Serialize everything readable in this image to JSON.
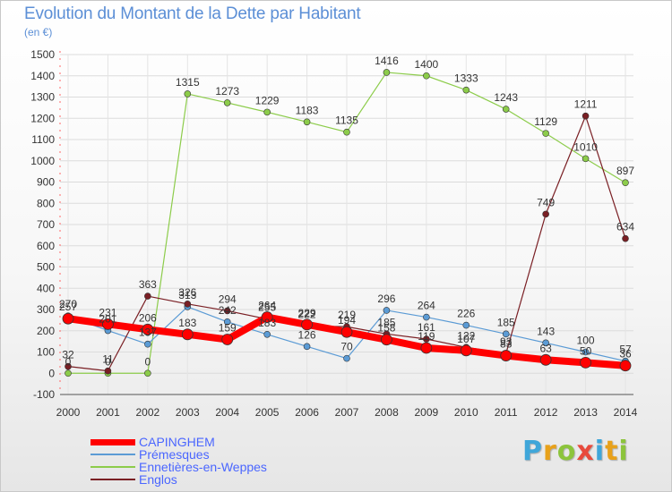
{
  "header": {
    "title": "Evolution du Montant de la Dette par Habitant",
    "subtitle": "(en €)"
  },
  "brand": {
    "text": "Proxiti",
    "colors": [
      "#3fa6d9",
      "#e8a11a",
      "#8cc43c",
      "#e84a3c",
      "#3fa6d9",
      "#e8a11a",
      "#8cc43c"
    ]
  },
  "chart_data": {
    "type": "line",
    "title": "Evolution du Montant de la Dette par Habitant",
    "subtitle": "(en €)",
    "xlabel": "",
    "ylabel": "",
    "x": [
      "2000",
      "2001",
      "2002",
      "2003",
      "2004",
      "2005",
      "2006",
      "2007",
      "2008",
      "2009",
      "2010",
      "2011",
      "2012",
      "2013",
      "2014"
    ],
    "ylim": [
      -100,
      1500
    ],
    "yticks": [
      -100,
      0,
      100,
      200,
      300,
      400,
      500,
      600,
      700,
      800,
      900,
      1000,
      1100,
      1200,
      1300,
      1400,
      1500
    ],
    "grid": true,
    "legend_position": "bottom-left",
    "series": [
      {
        "name": "CAPINGHEM",
        "color": "#ff0000",
        "values": [
          257,
          231,
          206,
          183,
          159,
          264,
          229,
          194,
          158,
          119,
          107,
          83,
          63,
          50,
          36
        ]
      },
      {
        "name": "Prémesques",
        "color": "#5b9bd5",
        "values": [
          270,
          201,
          137,
          313,
          242,
          183,
          126,
          70,
          296,
          264,
          226,
          185,
          143,
          100,
          57
        ]
      },
      {
        "name": "Ennetières-en-Weppes",
        "color": "#8ccc4a",
        "values": [
          0,
          0,
          0,
          1315,
          1273,
          1229,
          1183,
          1135,
          1416,
          1400,
          1333,
          1243,
          1129,
          1010,
          897
        ]
      },
      {
        "name": "Englos",
        "color": "#7a1f24",
        "values": [
          32,
          11,
          363,
          326,
          294,
          255,
          222,
          219,
          185,
          161,
          122,
          93,
          749,
          1211,
          634
        ]
      }
    ]
  }
}
